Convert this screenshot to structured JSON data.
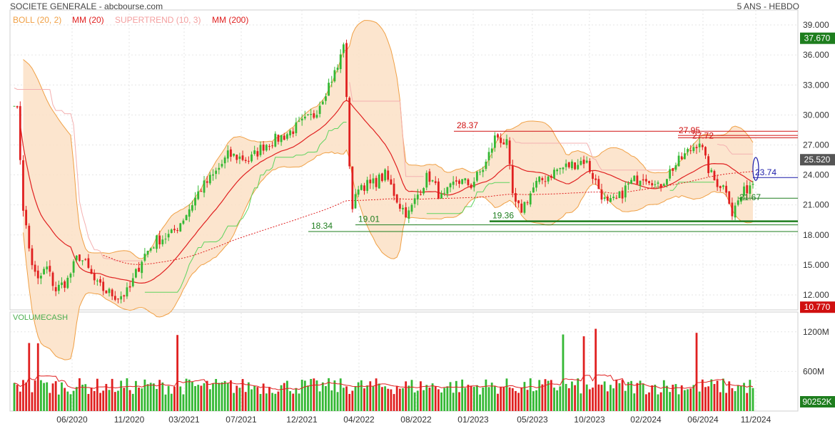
{
  "header": {
    "title": "SOCIETE GENERALE - abcbourse.com",
    "period": "5 ANS - HEBDO"
  },
  "legend": [
    {
      "label": "BOLL (20, 2)",
      "color": "#f0a045"
    },
    {
      "label": "MM (20)",
      "color": "#e02020"
    },
    {
      "label": "SUPERTREND (10, 3)",
      "color": "#f4a0a0"
    },
    {
      "label": "MM (200)",
      "color": "#e02020"
    }
  ],
  "volume_label": "VOLUMECASH",
  "chart_data": [
    {
      "type": "candlestick",
      "yticks": [
        12.0,
        15.0,
        18.0,
        21.0,
        24.0,
        27.0,
        30.0,
        33.0,
        36.0,
        39.0
      ],
      "ytick_labels": [
        "12.000",
        "15.000",
        "18.000",
        "21.000",
        "24.000",
        "27.000",
        "30.000",
        "33.000",
        "36.000",
        "39.000"
      ],
      "ylim": [
        10.5,
        40.5
      ],
      "xticks": [
        "06/2020",
        "11/2020",
        "03/2021",
        "07/2021",
        "12/2021",
        "04/2022",
        "08/2022",
        "01/2023",
        "05/2023",
        "10/2023",
        "02/2024",
        "06/2024",
        "11/2024"
      ],
      "price_tags": [
        {
          "label": "37.670",
          "value": 37.67,
          "color": "#1e7e1e"
        },
        {
          "label": "25.520",
          "value": 25.52,
          "color": "#555555"
        },
        {
          "label": "10.770",
          "value": 10.77,
          "color": "#d01010"
        }
      ],
      "annotations": [
        {
          "label": "28.37",
          "value": 28.37,
          "color": "#d01010"
        },
        {
          "label": "27.95",
          "value": 27.95,
          "color": "#d01010"
        },
        {
          "label": "27.72",
          "value": 27.72,
          "color": "#d01010"
        },
        {
          "label": "23.74",
          "value": 23.74,
          "color": "#1a1aa8"
        },
        {
          "label": "21.67",
          "value": 21.67,
          "color": "#1e7e1e"
        },
        {
          "label": "19.36",
          "value": 19.36,
          "color": "#1e7e1e"
        },
        {
          "label": "19.01",
          "value": 19.01,
          "color": "#1e7e1e"
        },
        {
          "label": "18.34",
          "value": 18.34,
          "color": "#1e7e1e"
        }
      ],
      "series": [
        {
          "name": "BOLL (20, 2)",
          "kind": "band"
        },
        {
          "name": "MM (20)",
          "kind": "line"
        },
        {
          "name": "SUPERTREND (10, 3)",
          "kind": "line"
        },
        {
          "name": "MM (200)",
          "kind": "dotted-line"
        }
      ]
    },
    {
      "type": "bar",
      "title": "VOLUMECASH",
      "yticks": [
        600,
        1200
      ],
      "ytick_labels": [
        "600M",
        "1200M"
      ],
      "ylim": [
        0,
        1500
      ],
      "price_tags": [
        {
          "label": "90252K",
          "value": 90,
          "color": "#1e7e1e"
        }
      ]
    }
  ]
}
